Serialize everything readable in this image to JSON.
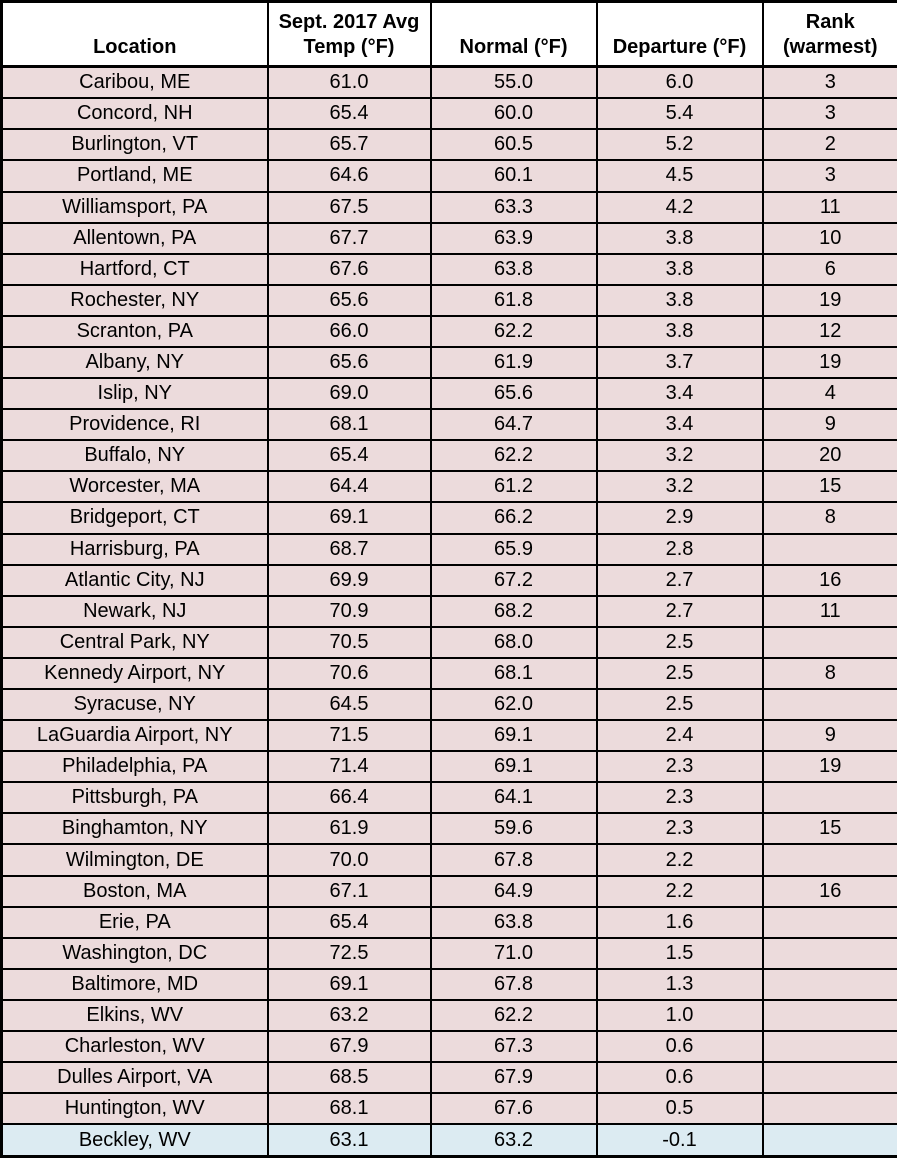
{
  "colors": {
    "row_pink": "#ecdbdc",
    "row_blue": "#dcebf2",
    "header_bg": "#ffffff",
    "border": "#000000",
    "text": "#000000"
  },
  "chart_data": {
    "type": "table",
    "columns": [
      "Location",
      "Sept. 2017 Avg\nTemp (°F)",
      "Normal (°F)",
      "Departure (°F)",
      "Rank\n(warmest)"
    ],
    "rows": [
      {
        "location": "Caribou, ME",
        "avg": "61.0",
        "normal": "55.0",
        "departure": "6.0",
        "rank": "3"
      },
      {
        "location": "Concord, NH",
        "avg": "65.4",
        "normal": "60.0",
        "departure": "5.4",
        "rank": "3"
      },
      {
        "location": "Burlington, VT",
        "avg": "65.7",
        "normal": "60.5",
        "departure": "5.2",
        "rank": "2"
      },
      {
        "location": "Portland, ME",
        "avg": "64.6",
        "normal": "60.1",
        "departure": "4.5",
        "rank": "3"
      },
      {
        "location": "Williamsport, PA",
        "avg": "67.5",
        "normal": "63.3",
        "departure": "4.2",
        "rank": "11"
      },
      {
        "location": "Allentown, PA",
        "avg": "67.7",
        "normal": "63.9",
        "departure": "3.8",
        "rank": "10"
      },
      {
        "location": "Hartford, CT",
        "avg": "67.6",
        "normal": "63.8",
        "departure": "3.8",
        "rank": "6"
      },
      {
        "location": "Rochester, NY",
        "avg": "65.6",
        "normal": "61.8",
        "departure": "3.8",
        "rank": "19"
      },
      {
        "location": "Scranton, PA",
        "avg": "66.0",
        "normal": "62.2",
        "departure": "3.8",
        "rank": "12"
      },
      {
        "location": "Albany, NY",
        "avg": "65.6",
        "normal": "61.9",
        "departure": "3.7",
        "rank": "19"
      },
      {
        "location": "Islip, NY",
        "avg": "69.0",
        "normal": "65.6",
        "departure": "3.4",
        "rank": "4"
      },
      {
        "location": "Providence, RI",
        "avg": "68.1",
        "normal": "64.7",
        "departure": "3.4",
        "rank": "9"
      },
      {
        "location": "Buffalo, NY",
        "avg": "65.4",
        "normal": "62.2",
        "departure": "3.2",
        "rank": "20"
      },
      {
        "location": "Worcester, MA",
        "avg": "64.4",
        "normal": "61.2",
        "departure": "3.2",
        "rank": "15"
      },
      {
        "location": "Bridgeport, CT",
        "avg": "69.1",
        "normal": "66.2",
        "departure": "2.9",
        "rank": "8"
      },
      {
        "location": "Harrisburg, PA",
        "avg": "68.7",
        "normal": "65.9",
        "departure": "2.8",
        "rank": ""
      },
      {
        "location": "Atlantic City, NJ",
        "avg": "69.9",
        "normal": "67.2",
        "departure": "2.7",
        "rank": "16"
      },
      {
        "location": "Newark, NJ",
        "avg": "70.9",
        "normal": "68.2",
        "departure": "2.7",
        "rank": "11"
      },
      {
        "location": "Central Park, NY",
        "avg": "70.5",
        "normal": "68.0",
        "departure": "2.5",
        "rank": ""
      },
      {
        "location": "Kennedy Airport, NY",
        "avg": "70.6",
        "normal": "68.1",
        "departure": "2.5",
        "rank": "8"
      },
      {
        "location": "Syracuse, NY",
        "avg": "64.5",
        "normal": "62.0",
        "departure": "2.5",
        "rank": ""
      },
      {
        "location": "LaGuardia Airport, NY",
        "avg": "71.5",
        "normal": "69.1",
        "departure": "2.4",
        "rank": "9"
      },
      {
        "location": "Philadelphia, PA",
        "avg": "71.4",
        "normal": "69.1",
        "departure": "2.3",
        "rank": "19"
      },
      {
        "location": "Pittsburgh, PA",
        "avg": "66.4",
        "normal": "64.1",
        "departure": "2.3",
        "rank": ""
      },
      {
        "location": "Binghamton, NY",
        "avg": "61.9",
        "normal": "59.6",
        "departure": "2.3",
        "rank": "15"
      },
      {
        "location": "Wilmington, DE",
        "avg": "70.0",
        "normal": "67.8",
        "departure": "2.2",
        "rank": ""
      },
      {
        "location": "Boston, MA",
        "avg": "67.1",
        "normal": "64.9",
        "departure": "2.2",
        "rank": "16"
      },
      {
        "location": "Erie, PA",
        "avg": "65.4",
        "normal": "63.8",
        "departure": "1.6",
        "rank": ""
      },
      {
        "location": "Washington, DC",
        "avg": "72.5",
        "normal": "71.0",
        "departure": "1.5",
        "rank": ""
      },
      {
        "location": "Baltimore, MD",
        "avg": "69.1",
        "normal": "67.8",
        "departure": "1.3",
        "rank": ""
      },
      {
        "location": "Elkins, WV",
        "avg": "63.2",
        "normal": "62.2",
        "departure": "1.0",
        "rank": ""
      },
      {
        "location": "Charleston, WV",
        "avg": "67.9",
        "normal": "67.3",
        "departure": "0.6",
        "rank": ""
      },
      {
        "location": "Dulles Airport, VA",
        "avg": "68.5",
        "normal": "67.9",
        "departure": "0.6",
        "rank": ""
      },
      {
        "location": "Huntington, WV",
        "avg": "68.1",
        "normal": "67.6",
        "departure": "0.5",
        "rank": ""
      },
      {
        "location": "Beckley, WV",
        "avg": "63.1",
        "normal": "63.2",
        "departure": "-0.1",
        "rank": "",
        "highlight": "blue"
      }
    ]
  }
}
